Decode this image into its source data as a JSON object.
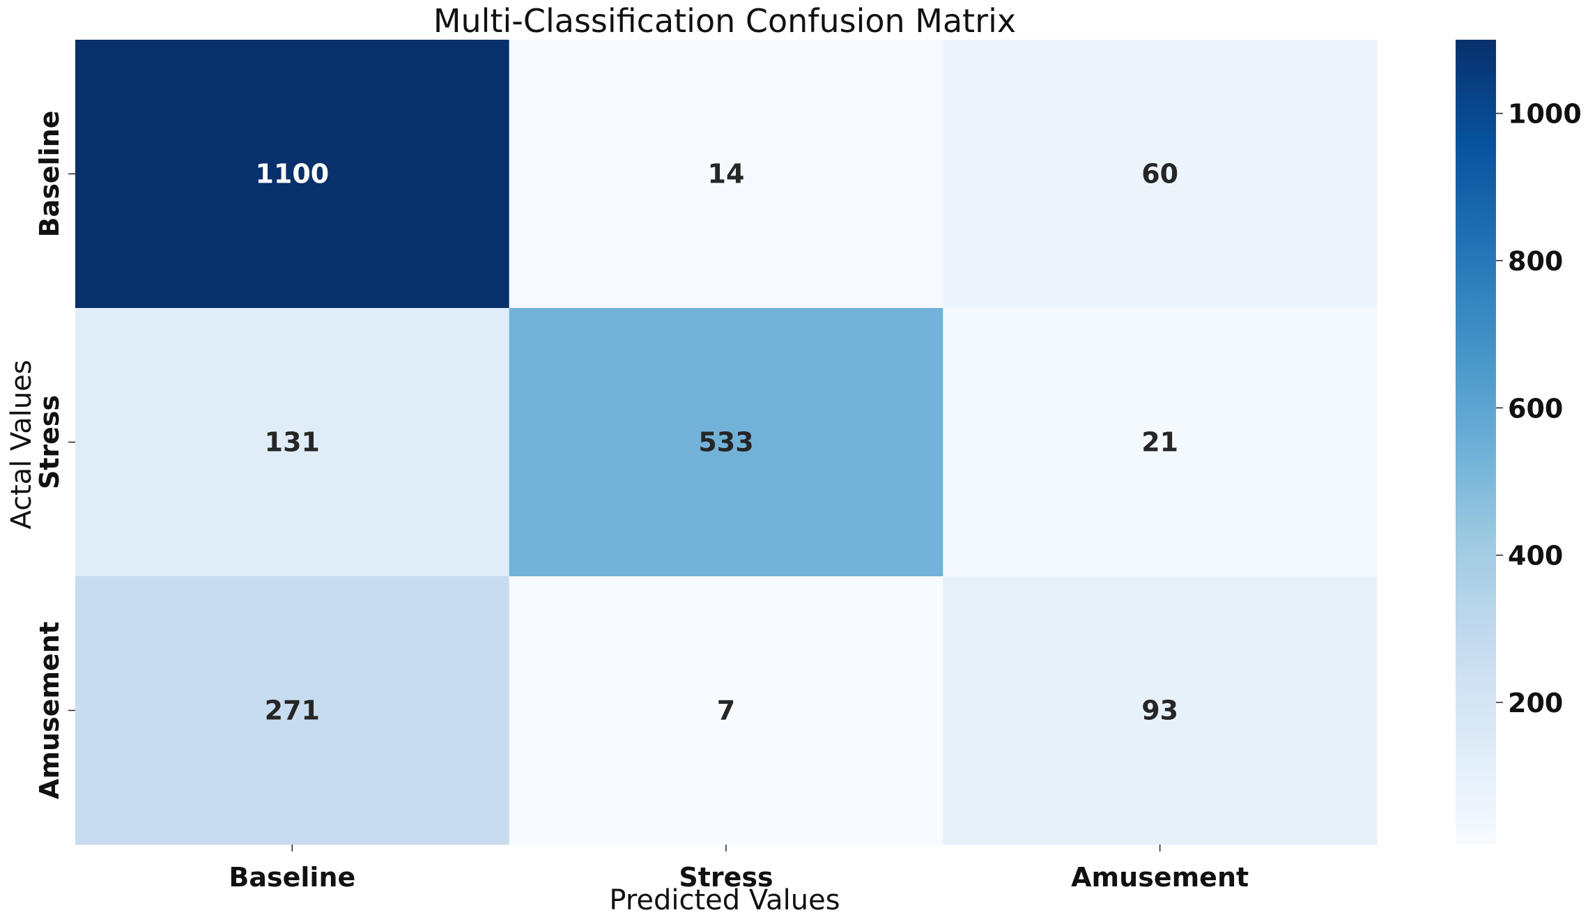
{
  "chart_data": {
    "type": "heatmap",
    "title": "Multi-Classification Confusion Matrix",
    "xlabel": "Predicted Values",
    "ylabel": "Actal Values",
    "x_categories": [
      "Baseline",
      "Stress",
      "Amusement"
    ],
    "y_categories": [
      "Baseline",
      "Stress",
      "Amusement"
    ],
    "matrix": [
      [
        1100,
        14,
        60
      ],
      [
        131,
        533,
        21
      ],
      [
        271,
        7,
        93
      ]
    ],
    "colormap": "Blues",
    "colorbar": {
      "vmin": 7,
      "vmax": 1100,
      "ticks": [
        200,
        400,
        600,
        800,
        1000
      ]
    }
  }
}
